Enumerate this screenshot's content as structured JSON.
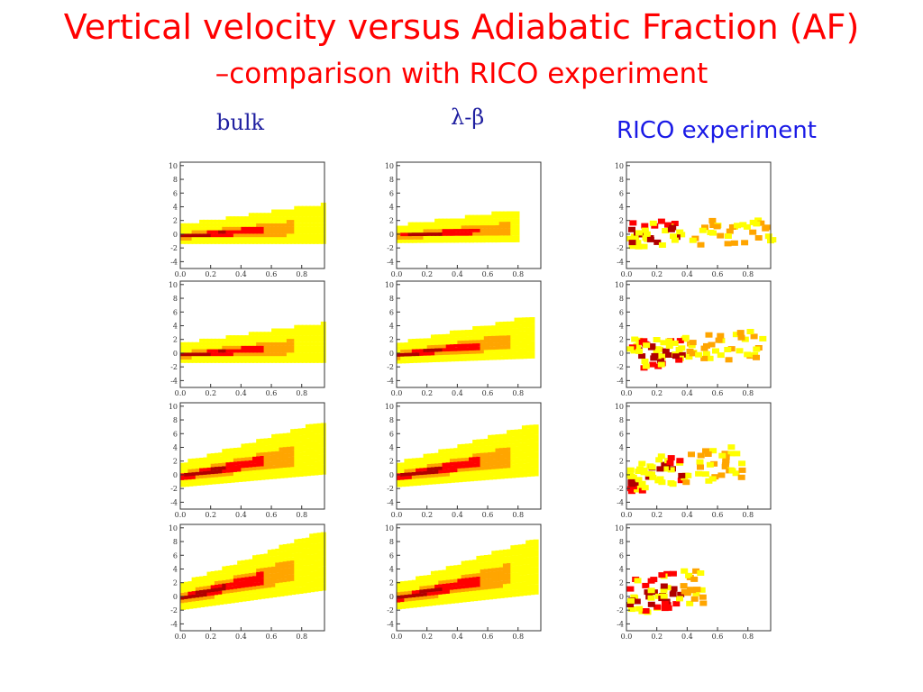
{
  "slide": {
    "title_line1": "Vertical velocity versus Adiabatic Fraction (AF)",
    "title_line2": "–comparison with RICO experiment"
  },
  "columns": [
    {
      "label": "bulk"
    },
    {
      "label": "λ-β"
    },
    {
      "label": "RICO experiment"
    }
  ],
  "colors": {
    "title": "#ff0000",
    "low_density": "#ffff00",
    "mid_density": "#ffa500",
    "high_density": "#ff0000",
    "peak_density": "#b00000"
  },
  "chart_data": {
    "type": "heatmap",
    "layout": "4 rows x 3 columns of 2D frequency plots",
    "column_labels": [
      "bulk",
      "λ-β",
      "RICO experiment"
    ],
    "x_ticks": [
      "0.0",
      "0.2",
      "0.4",
      "0.6",
      "0.8"
    ],
    "y_ticks": [
      "10",
      "8",
      "6",
      "4",
      "2",
      "0",
      "-2",
      "-4"
    ],
    "xlim": [
      0,
      0.95
    ],
    "ylim": [
      -5,
      10.5
    ],
    "panels": [
      [
        {
          "type": "model",
          "slope": 1.6,
          "xmax": 0.95,
          "thick": 2.0
        },
        {
          "type": "model",
          "slope": 1.5,
          "xmax": 0.78,
          "thick": 1.7
        },
        {
          "type": "obs",
          "slope": 1.5,
          "xmax": 0.95,
          "spread": 1.8,
          "n": 70,
          "seed": 11
        }
      ],
      [
        {
          "type": "model",
          "slope": 1.6,
          "xmax": 0.95,
          "thick": 2.0
        },
        {
          "type": "model",
          "slope": 2.6,
          "xmax": 0.9,
          "thick": 2.2
        },
        {
          "type": "obs",
          "slope": 2.8,
          "xmax": 0.88,
          "spread": 2.0,
          "n": 90,
          "seed": 23
        }
      ],
      [
        {
          "type": "model",
          "slope": 4.2,
          "xmax": 0.95,
          "thick": 2.8
        },
        {
          "type": "model",
          "slope": 4.0,
          "xmax": 0.92,
          "thick": 2.8
        },
        {
          "type": "obs",
          "slope": 4.2,
          "xmax": 0.75,
          "spread": 2.2,
          "n": 85,
          "seed": 37
        }
      ],
      [
        {
          "type": "model",
          "slope": 5.6,
          "xmax": 0.95,
          "thick": 3.2
        },
        {
          "type": "model",
          "slope": 4.8,
          "xmax": 0.92,
          "thick": 3.0
        },
        {
          "type": "obs",
          "slope": 5.0,
          "xmax": 0.5,
          "spread": 2.4,
          "n": 65,
          "seed": 53
        }
      ]
    ]
  }
}
